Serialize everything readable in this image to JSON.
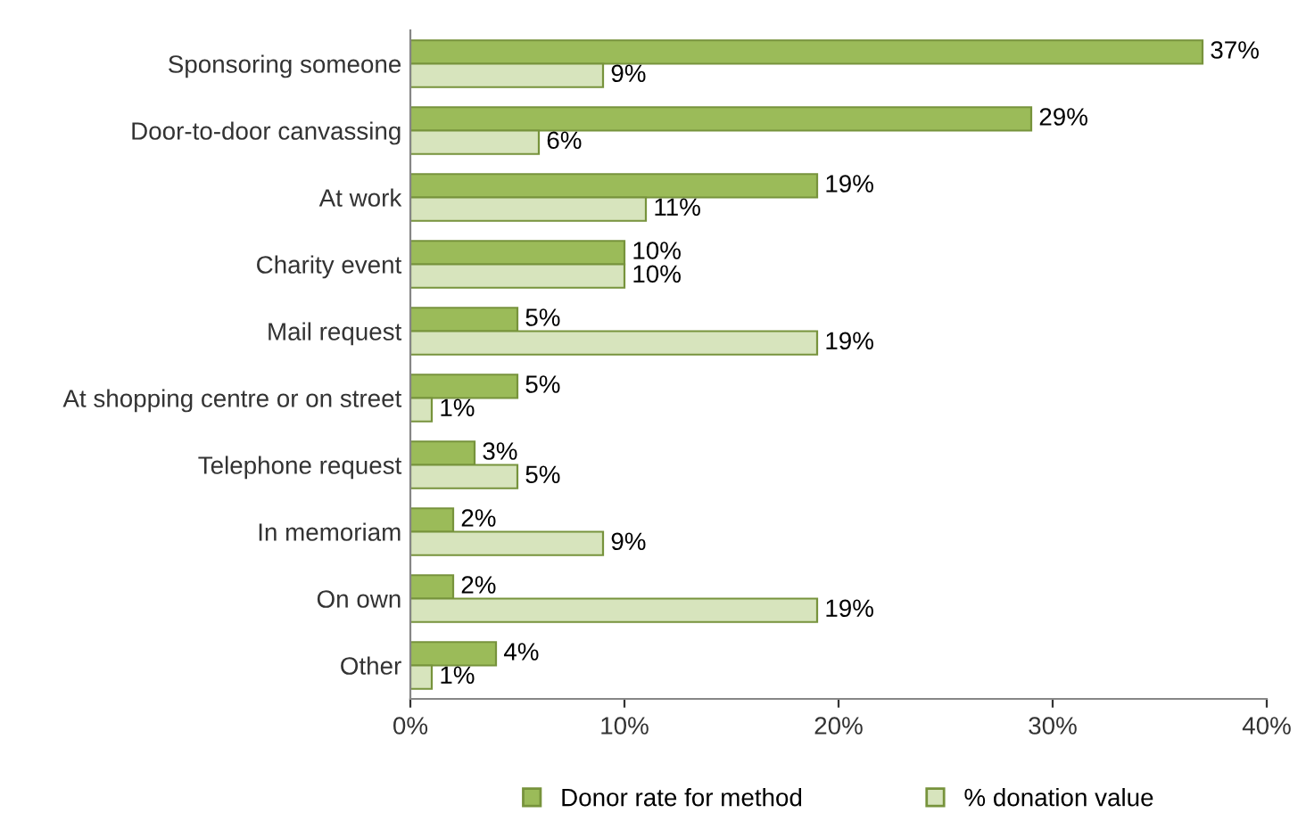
{
  "chart_data": {
    "type": "bar",
    "orientation": "horizontal",
    "categories": [
      "Sponsoring someone",
      "Door-to-door canvassing",
      "At work",
      "Charity event",
      "Mail request",
      "At shopping centre or on street",
      "Telephone request",
      "In memoriam",
      "On own",
      "Other"
    ],
    "series": [
      {
        "name": "Donor rate for method",
        "color": "#9bbb59",
        "values": [
          37,
          29,
          19,
          10,
          5,
          5,
          3,
          2,
          2,
          4
        ],
        "value_labels": [
          "37%",
          "29%",
          "19%",
          "10%",
          "5%",
          "5%",
          "3%",
          "2%",
          "2%",
          "4%"
        ]
      },
      {
        "name": "% donation value",
        "color": "#d7e4bd",
        "values": [
          9,
          6,
          11,
          10,
          19,
          1,
          5,
          9,
          19,
          1
        ],
        "value_labels": [
          "9%",
          "6%",
          "11%",
          "10%",
          "19%",
          "1%",
          "5%",
          "9%",
          "19%",
          "1%"
        ]
      }
    ],
    "xlim": [
      0,
      40
    ],
    "xticks": [
      {
        "value": 0,
        "label": "0%"
      },
      {
        "value": 10,
        "label": "10%"
      },
      {
        "value": 20,
        "label": "20%"
      },
      {
        "value": 30,
        "label": "30%"
      },
      {
        "value": 40,
        "label": "40%"
      }
    ],
    "grid": false,
    "legend": "bottom"
  }
}
